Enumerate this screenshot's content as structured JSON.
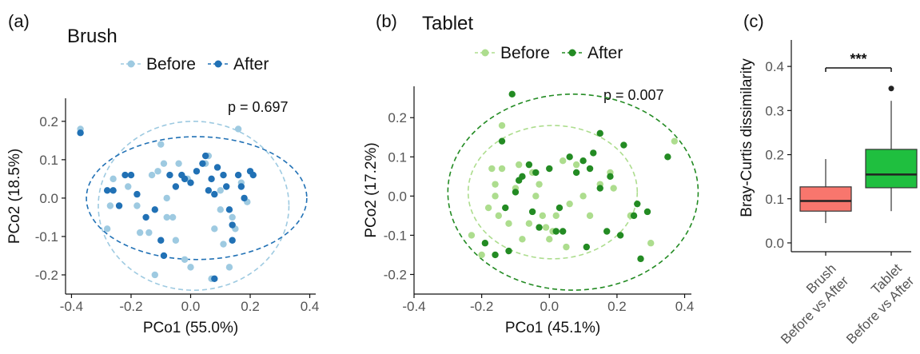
{
  "colors": {
    "brush_before": "#9ecae1",
    "brush_after": "#2171b5",
    "tablet_before": "#addd8e",
    "tablet_after": "#238b23",
    "box_brush": "#f8766d",
    "box_tablet": "#1fbf3f"
  },
  "chart_data": [
    {
      "type": "scatter",
      "panel_label": "(a)",
      "title": "Brush",
      "xlabel": "PCo1 (55.0%)",
      "ylabel": "PCo2 (18.5%)",
      "xlim": [
        -0.42,
        0.42
      ],
      "ylim": [
        -0.25,
        0.26
      ],
      "xticks": [
        -0.4,
        -0.2,
        0.0,
        0.2,
        0.4
      ],
      "xtick_labels": [
        "-0.4",
        "-0.2",
        "0.0",
        "0.2",
        "0.4"
      ],
      "yticks": [
        -0.2,
        -0.1,
        0.0,
        0.1,
        0.2
      ],
      "ytick_labels": [
        "-0.2",
        "-0.1",
        "0.0",
        "0.1",
        "0.2"
      ],
      "annotation": "p =  0.697",
      "legend_position": "top",
      "series": [
        {
          "name": "Before",
          "color": "#9ecae1",
          "ellipse": {
            "cx": 0.01,
            "cy": -0.02,
            "rx": 0.32,
            "ry": 0.22
          },
          "points": [
            [
              -0.37,
              0.18
            ],
            [
              -0.26,
              0.05
            ],
            [
              -0.27,
              -0.02
            ],
            [
              -0.28,
              -0.08
            ],
            [
              -0.21,
              0.03
            ],
            [
              -0.18,
              -0.02
            ],
            [
              -0.17,
              -0.09
            ],
            [
              -0.14,
              -0.09
            ],
            [
              -0.13,
              0.06
            ],
            [
              -0.11,
              0.07
            ],
            [
              -0.1,
              0.14
            ],
            [
              -0.09,
              0.09
            ],
            [
              -0.08,
              0.0
            ],
            [
              -0.08,
              -0.05
            ],
            [
              -0.06,
              -0.05
            ],
            [
              -0.05,
              -0.11
            ],
            [
              -0.04,
              0.09
            ],
            [
              -0.02,
              -0.16
            ],
            [
              -0.01,
              0.05
            ],
            [
              0.0,
              -0.18
            ],
            [
              0.05,
              0.09
            ],
            [
              0.06,
              0.11
            ],
            [
              0.08,
              -0.08
            ],
            [
              0.1,
              0.02
            ],
            [
              0.1,
              -0.03
            ],
            [
              0.11,
              -0.12
            ],
            [
              0.13,
              -0.18
            ],
            [
              0.14,
              -0.05
            ],
            [
              0.15,
              -0.08
            ],
            [
              0.16,
              0.18
            ],
            [
              0.17,
              0.04
            ],
            [
              0.19,
              -0.01
            ],
            [
              0.07,
              -0.21
            ],
            [
              -0.12,
              -0.2
            ]
          ]
        },
        {
          "name": "After",
          "color": "#2171b5",
          "ellipse": {
            "cx": 0.02,
            "cy": 0.0,
            "rx": 0.37,
            "ry": 0.16
          },
          "points": [
            [
              -0.37,
              0.17
            ],
            [
              -0.28,
              0.02
            ],
            [
              -0.26,
              0.02
            ],
            [
              -0.24,
              -0.02
            ],
            [
              -0.22,
              0.06
            ],
            [
              -0.2,
              0.06
            ],
            [
              -0.18,
              0.01
            ],
            [
              -0.15,
              -0.05
            ],
            [
              -0.12,
              -0.03
            ],
            [
              -0.1,
              -0.11
            ],
            [
              -0.09,
              -0.15
            ],
            [
              -0.07,
              0.06
            ],
            [
              -0.05,
              0.03
            ],
            [
              -0.03,
              0.06
            ],
            [
              -0.02,
              0.05
            ],
            [
              0.0,
              0.04
            ],
            [
              0.02,
              0.07
            ],
            [
              0.04,
              0.09
            ],
            [
              0.05,
              0.11
            ],
            [
              0.06,
              0.02
            ],
            [
              0.07,
              0.05
            ],
            [
              0.08,
              0.01
            ],
            [
              0.09,
              0.08
            ],
            [
              0.11,
              0.06
            ],
            [
              0.12,
              0.03
            ],
            [
              0.13,
              -0.03
            ],
            [
              0.14,
              -0.07
            ],
            [
              0.14,
              -0.11
            ],
            [
              0.16,
              0.06
            ],
            [
              0.17,
              0.03
            ],
            [
              0.18,
              0.0
            ],
            [
              0.2,
              0.07
            ],
            [
              0.21,
              0.06
            ],
            [
              0.08,
              -0.21
            ]
          ]
        }
      ]
    },
    {
      "type": "scatter",
      "panel_label": "(b)",
      "title": "Tablet",
      "xlabel": "PCo1 (45.1%)",
      "ylabel": "PCo2 (17.2%)",
      "xlim": [
        -0.4,
        0.42
      ],
      "ylim": [
        -0.25,
        0.28
      ],
      "xticks": [
        -0.4,
        -0.2,
        0.0,
        0.2,
        0.4
      ],
      "xtick_labels": [
        "-0.4",
        "-0.2",
        "0.0",
        "0.2",
        "0.4"
      ],
      "yticks": [
        -0.2,
        -0.1,
        0.0,
        0.1,
        0.2
      ],
      "ytick_labels": [
        "-0.2",
        "-0.1",
        "0.0",
        "0.1",
        "0.2"
      ],
      "annotation": "p =  0.007",
      "legend_position": "top",
      "series": [
        {
          "name": "Before",
          "color": "#addd8e",
          "ellipse": {
            "cx": 0.01,
            "cy": 0.01,
            "rx": 0.25,
            "ry": 0.17
          },
          "points": [
            [
              -0.23,
              -0.1
            ],
            [
              -0.2,
              -0.15
            ],
            [
              -0.17,
              0.07
            ],
            [
              -0.16,
              0.03
            ],
            [
              -0.16,
              0.0
            ],
            [
              -0.15,
              -0.05
            ],
            [
              -0.14,
              0.07
            ],
            [
              -0.14,
              0.18
            ],
            [
              -0.12,
              -0.07
            ],
            [
              -0.1,
              0.02
            ],
            [
              -0.09,
              0.08
            ],
            [
              -0.08,
              -0.11
            ],
            [
              -0.06,
              -0.07
            ],
            [
              -0.05,
              0.06
            ],
            [
              -0.04,
              0.0
            ],
            [
              -0.03,
              0.03
            ],
            [
              -0.02,
              -0.05
            ],
            [
              -0.01,
              -0.08
            ],
            [
              0.0,
              -0.11
            ],
            [
              0.01,
              -0.09
            ],
            [
              0.02,
              -0.05
            ],
            [
              0.04,
              0.09
            ],
            [
              0.06,
              -0.02
            ],
            [
              0.08,
              0.08
            ],
            [
              0.1,
              0.0
            ],
            [
              0.12,
              -0.05
            ],
            [
              0.15,
              0.03
            ],
            [
              0.18,
              0.06
            ],
            [
              0.19,
              0.02
            ],
            [
              0.24,
              -0.05
            ],
            [
              0.3,
              -0.12
            ],
            [
              0.37,
              0.14
            ],
            [
              0.05,
              -0.13
            ],
            [
              -0.18,
              -0.03
            ]
          ]
        },
        {
          "name": "After",
          "color": "#238b23",
          "ellipse": {
            "cx": 0.07,
            "cy": 0.01,
            "rx": 0.37,
            "ry": 0.25
          },
          "points": [
            [
              -0.19,
              -0.12
            ],
            [
              -0.16,
              -0.15
            ],
            [
              -0.14,
              0.14
            ],
            [
              -0.13,
              -0.03
            ],
            [
              -0.11,
              0.26
            ],
            [
              -0.1,
              0.01
            ],
            [
              -0.09,
              0.04
            ],
            [
              -0.08,
              0.05
            ],
            [
              -0.06,
              0.08
            ],
            [
              -0.05,
              -0.04
            ],
            [
              -0.04,
              0.06
            ],
            [
              -0.03,
              -0.08
            ],
            [
              0.0,
              0.07
            ],
            [
              0.02,
              -0.09
            ],
            [
              0.03,
              -0.03
            ],
            [
              0.04,
              -0.09
            ],
            [
              0.06,
              0.1
            ],
            [
              0.08,
              0.06
            ],
            [
              0.1,
              0.09
            ],
            [
              0.11,
              -0.13
            ],
            [
              0.12,
              0.07
            ],
            [
              0.13,
              0.11
            ],
            [
              0.15,
              0.02
            ],
            [
              0.15,
              0.16
            ],
            [
              0.17,
              -0.09
            ],
            [
              0.18,
              0.05
            ],
            [
              0.21,
              -0.1
            ],
            [
              0.22,
              0.13
            ],
            [
              0.25,
              -0.05
            ],
            [
              0.26,
              -0.02
            ],
            [
              0.27,
              -0.16
            ],
            [
              0.29,
              -0.04
            ],
            [
              0.35,
              0.1
            ],
            [
              -0.12,
              -0.14
            ]
          ]
        }
      ]
    },
    {
      "type": "box",
      "panel_label": "(c)",
      "ylabel": "Bray-Curtis dissimilarity",
      "ylim": [
        -0.02,
        0.46
      ],
      "yticks": [
        0.0,
        0.1,
        0.2,
        0.3,
        0.4
      ],
      "ytick_labels": [
        "0.0",
        "0.1",
        "0.2",
        "0.3",
        "0.4"
      ],
      "categories": [
        "Brush\nBefore vs After",
        "Tablet\nBefore vs After"
      ],
      "significance": "***",
      "boxes": [
        {
          "name": "Brush",
          "label_lines": [
            "Brush",
            "Before vs After"
          ],
          "color": "#f8766d",
          "whisker_low": 0.045,
          "q1": 0.072,
          "median": 0.095,
          "q3": 0.127,
          "whisker_high": 0.19,
          "outliers": []
        },
        {
          "name": "Tablet",
          "label_lines": [
            "Tablet",
            "Before vs After"
          ],
          "color": "#1fbf3f",
          "whisker_low": 0.072,
          "q1": 0.125,
          "median": 0.155,
          "q3": 0.212,
          "whisker_high": 0.322,
          "outliers": [
            0.35
          ]
        }
      ]
    }
  ]
}
